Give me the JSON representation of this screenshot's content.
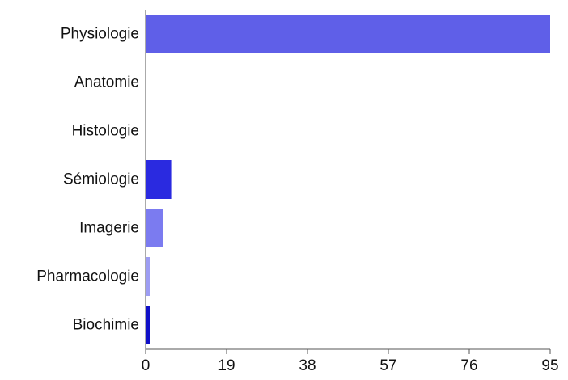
{
  "chart_data": {
    "type": "bar",
    "orientation": "horizontal",
    "categories": [
      "Physiologie",
      "Anatomie",
      "Histologie",
      "Sémiologie",
      "Imagerie",
      "Pharmacologie",
      "Biochimie"
    ],
    "values": [
      95,
      0,
      0,
      6,
      4,
      1,
      1
    ],
    "colors": [
      "#5f5fe8",
      "#5f5fe8",
      "#5f5fe8",
      "#2a2ae0",
      "#7b7bf0",
      "#9d9df3",
      "#1010c8"
    ],
    "xlim": [
      0,
      95
    ],
    "xticks": [
      0,
      19,
      38,
      57,
      76,
      95
    ],
    "title": "",
    "xlabel": "",
    "ylabel": "",
    "grid": false,
    "legend": "none"
  }
}
